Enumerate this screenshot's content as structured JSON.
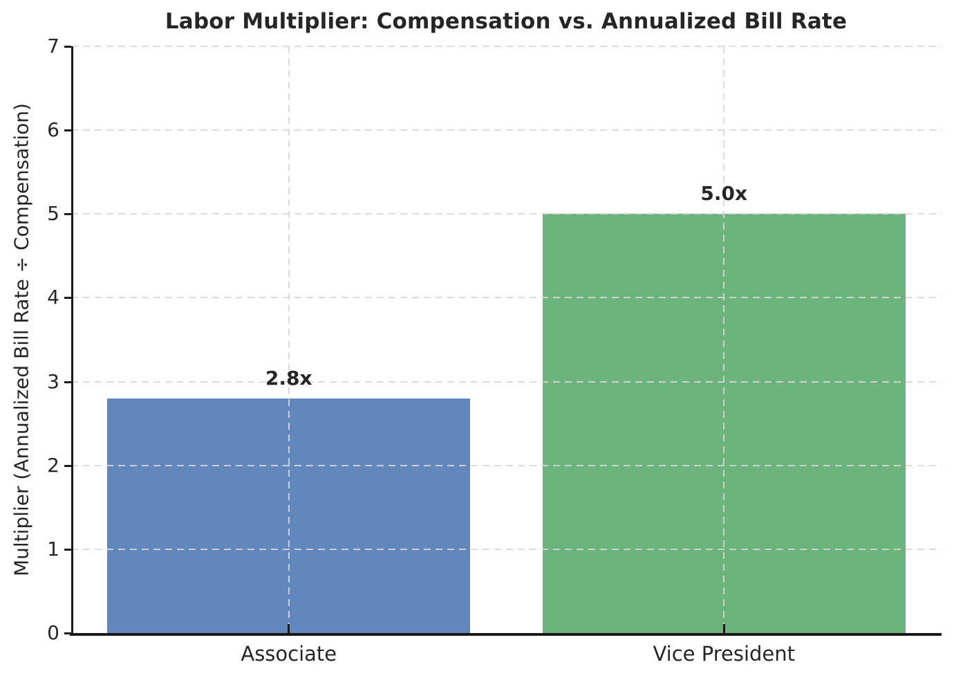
{
  "chart_data": {
    "type": "bar",
    "title": "Labor Multiplier: Compensation vs. Annualized Bill Rate",
    "ylabel": "Multiplier (Annualized Bill Rate ÷ Compensation)",
    "xlabel": "",
    "categories": [
      "Associate",
      "Vice President"
    ],
    "values": [
      2.8,
      5.0
    ],
    "value_labels": [
      "2.8x",
      "5.0x"
    ],
    "bar_colors": [
      "#6287bd",
      "#6bb57d"
    ],
    "ylim": [
      0,
      7
    ],
    "yticks": [
      0,
      1,
      2,
      3,
      4,
      5,
      6,
      7
    ],
    "grid": "dashed, horizontal at integer ticks and vertical at category centers, drawn above bars",
    "legend": "none"
  },
  "colors": {
    "background": "#ffffff",
    "text": "#262626",
    "grid": "#d8d8d8",
    "spine": "#1a1a1a"
  }
}
